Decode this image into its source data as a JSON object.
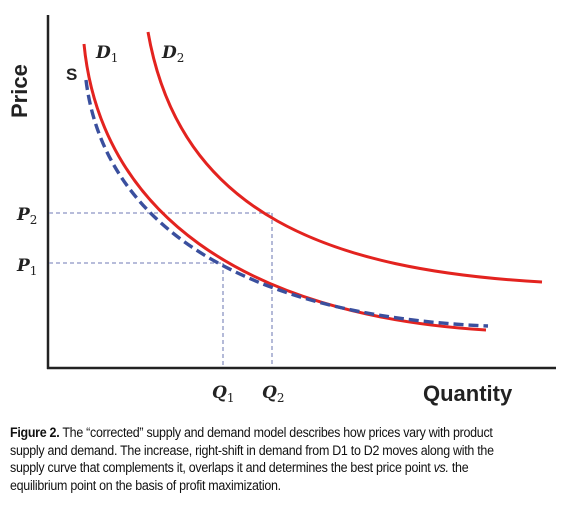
{
  "diagram": {
    "y_axis_label": "Price",
    "x_axis_label": "Quantity",
    "curves": {
      "supply": {
        "label": "S",
        "color": "#3a4f9e"
      },
      "demand1": {
        "label": "D",
        "sub": "1",
        "color": "#e3231f"
      },
      "demand2": {
        "label": "D",
        "sub": "2",
        "color": "#e3231f"
      }
    },
    "price_ticks": [
      {
        "label": "P",
        "sub": "2"
      },
      {
        "label": "P",
        "sub": "1"
      }
    ],
    "quantity_ticks": [
      {
        "label": "Q",
        "sub": "1"
      },
      {
        "label": "Q",
        "sub": "2"
      }
    ],
    "guide_color": "#8c95c4"
  },
  "caption": {
    "label": "Figure 2.",
    "text_before": " The “corrected” supply and demand model describes how prices vary with product supply and demand. The increase, right-shift in demand from D1 to D2 moves along with the supply curve that complements it, overlaps it and determines the best price point ",
    "vs": "vs.",
    "text_after": " the equilibrium point on the basis of profit maximization."
  }
}
